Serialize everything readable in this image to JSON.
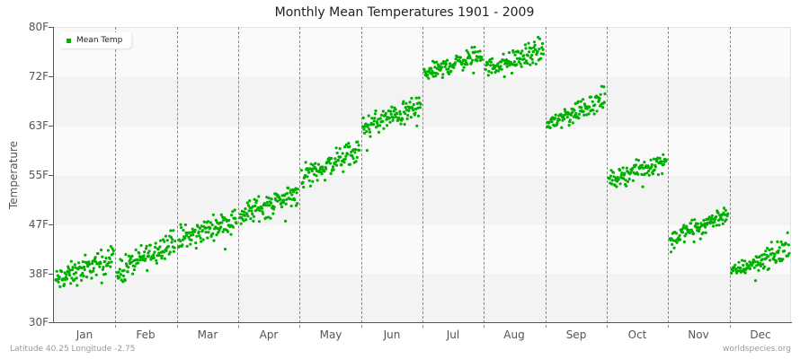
{
  "title": "Monthly Mean Temperatures 1901 - 2009",
  "legend": {
    "label": "Mean Temp",
    "color": "#00b000"
  },
  "y_axis": {
    "title": "Temperature",
    "ticks": [
      "80F",
      "72F",
      "63F",
      "55F",
      "47F",
      "38F",
      "30F"
    ]
  },
  "x_axis": {
    "labels": [
      "Jan",
      "Feb",
      "Mar",
      "Apr",
      "May",
      "Jun",
      "Jul",
      "Aug",
      "Sep",
      "Oct",
      "Nov",
      "Dec"
    ]
  },
  "footer": {
    "left": "Latitude 40.25 Longitude -2.75",
    "right": "worldspecies.org"
  },
  "chart_data": {
    "type": "scatter",
    "title": "Monthly Mean Temperatures 1901 - 2009",
    "xlabel": "",
    "ylabel": "Temperature",
    "ylim": [
      30,
      80
    ],
    "yticks": [
      30,
      38,
      47,
      55,
      63,
      72,
      80
    ],
    "categories": [
      "Jan",
      "Feb",
      "Mar",
      "Apr",
      "May",
      "Jun",
      "Jul",
      "Aug",
      "Sep",
      "Oct",
      "Nov",
      "Dec"
    ],
    "legend": [
      "Mean Temp"
    ],
    "legend_position": "top-left",
    "grid": "alternating horizontal bands, dashed vertical month dividers",
    "series": [
      {
        "name": "Mean Temp",
        "color": "#00b000",
        "points_per_month": 109,
        "monthly_range_start": [
          [
            34,
            40
          ],
          [
            35,
            42
          ],
          [
            41,
            47
          ],
          [
            45,
            51
          ],
          [
            51,
            58
          ],
          [
            60,
            66
          ],
          [
            70,
            74
          ],
          [
            71,
            75
          ],
          [
            61,
            66
          ],
          [
            52,
            56
          ],
          [
            42,
            46
          ],
          [
            37,
            40
          ]
        ],
        "monthly_range_end": [
          [
            38,
            44
          ],
          [
            41,
            47
          ],
          [
            45,
            50
          ],
          [
            49,
            55
          ],
          [
            56,
            62
          ],
          [
            64,
            69
          ],
          [
            73,
            78
          ],
          [
            73,
            79
          ],
          [
            65,
            71
          ],
          [
            55,
            60
          ],
          [
            46,
            51
          ],
          [
            39,
            46
          ]
        ],
        "approx_monthly_mean": [
          39,
          41,
          45.5,
          50,
          57,
          64.5,
          73,
          73,
          65,
          55,
          45.5,
          40
        ]
      }
    ]
  }
}
